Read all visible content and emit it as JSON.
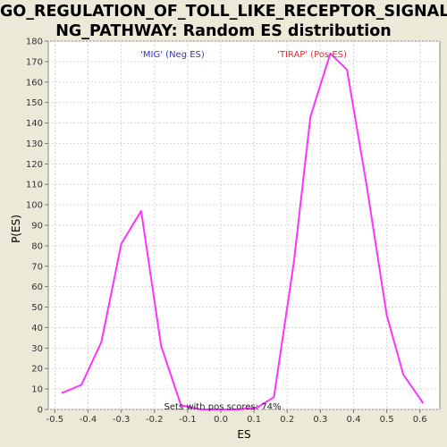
{
  "chart_data": {
    "type": "line",
    "title_lines": [
      "GO_REGULATION_OF_TOLL_LIKE_RECEPTOR_SIGNALI",
      "NG_PATHWAY: Random ES distribution"
    ],
    "xlabel": "ES",
    "ylabel": "P(ES)",
    "xlim": [
      -0.52,
      0.66
    ],
    "ylim": [
      0,
      180
    ],
    "x_ticks": [
      "-0.5",
      "-0.4",
      "-0.3",
      "-0.2",
      "-0.1",
      "0.0",
      "0.1",
      "0.2",
      "0.3",
      "0.4",
      "0.5",
      "0.6"
    ],
    "x_tick_values": [
      -0.5,
      -0.4,
      -0.3,
      -0.2,
      -0.1,
      0.0,
      0.1,
      0.2,
      0.3,
      0.4,
      0.5,
      0.6
    ],
    "y_ticks": [
      "0",
      "10",
      "20",
      "30",
      "40",
      "50",
      "60",
      "70",
      "80",
      "90",
      "100",
      "110",
      "120",
      "130",
      "140",
      "150",
      "160",
      "170",
      "180"
    ],
    "y_tick_values": [
      0,
      10,
      20,
      30,
      40,
      50,
      60,
      70,
      80,
      90,
      100,
      110,
      120,
      130,
      140,
      150,
      160,
      170,
      180
    ],
    "grid": true,
    "series": [
      {
        "color": "#ff33ff",
        "x": [
          -0.48,
          -0.42,
          -0.36,
          -0.3,
          -0.24,
          -0.18,
          -0.12,
          -0.06,
          0.0,
          0.05,
          0.11,
          0.16,
          0.22,
          0.27,
          0.33,
          0.38,
          0.44,
          0.5,
          0.55,
          0.61
        ],
        "y": [
          8,
          12,
          33,
          81,
          97,
          31,
          2,
          0,
          0,
          0,
          1,
          6,
          72,
          143,
          174,
          166,
          109,
          46,
          17,
          3
        ]
      }
    ],
    "annotations": [
      {
        "text": "'MIG' (Neg ES)",
        "color": "#3333cc"
      },
      {
        "text": "'TIRAP' (Pos ES)",
        "color": "#dd3333"
      },
      {
        "text": "Sets with pos scores: 74%",
        "color": "#222222"
      }
    ]
  }
}
